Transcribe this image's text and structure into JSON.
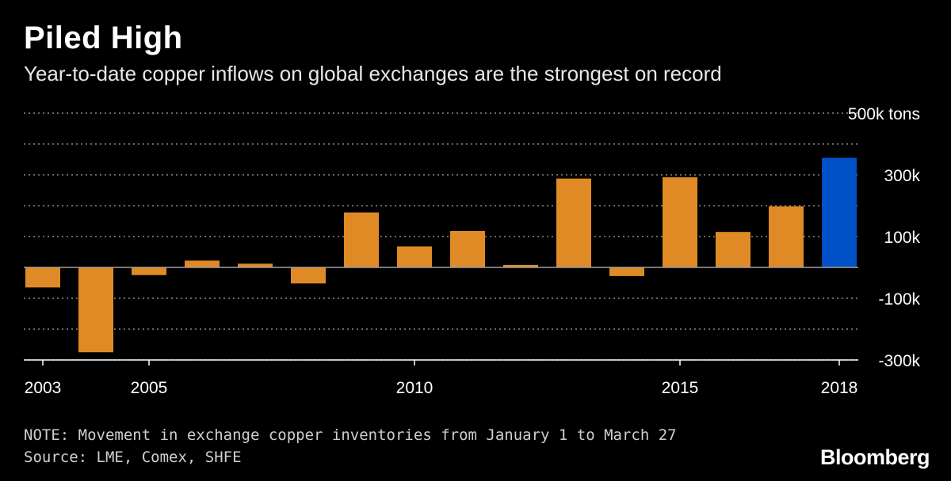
{
  "header": {
    "title": "Piled High",
    "subtitle": "Year-to-date copper inflows on global exchanges are the strongest on record"
  },
  "footer": {
    "note": "NOTE: Movement in exchange copper inventories from January 1 to March 27",
    "source": "Source: LME, Comex, SHFE",
    "brand": "Bloomberg"
  },
  "colors": {
    "background": "#000000",
    "bar": "#e08a25",
    "highlight": "#0050c8",
    "grid": "#8a8a8a",
    "text": "#ffffff"
  },
  "chart_data": {
    "type": "bar",
    "title": "Piled High",
    "subtitle": "Year-to-date copper inflows on global exchanges are the strongest on record",
    "ylabel": "",
    "xlabel": "",
    "unit": "tons",
    "x": [
      2003,
      2004,
      2005,
      2006,
      2007,
      2008,
      2009,
      2010,
      2011,
      2012,
      2013,
      2014,
      2015,
      2016,
      2017,
      2018
    ],
    "values": [
      -65000,
      -275000,
      -25000,
      22000,
      12000,
      -52000,
      178000,
      68000,
      118000,
      8000,
      288000,
      -28000,
      292000,
      115000,
      198000,
      355000
    ],
    "highlight_index": 15,
    "ylim": [
      -300000,
      500000
    ],
    "gridlines": [
      -300000,
      -200000,
      -100000,
      0,
      100000,
      200000,
      300000,
      400000,
      500000
    ],
    "y_tick_labels": [
      {
        "value": 500000,
        "label": "500k tons"
      },
      {
        "value": 300000,
        "label": "300k"
      },
      {
        "value": 100000,
        "label": "100k"
      },
      {
        "value": -100000,
        "label": "-100k"
      },
      {
        "value": -300000,
        "label": "-300k"
      }
    ],
    "x_tick_labels": [
      {
        "value": 2003,
        "label": "2003"
      },
      {
        "value": 2005,
        "label": "2005"
      },
      {
        "value": 2010,
        "label": "2010"
      },
      {
        "value": 2015,
        "label": "2015"
      },
      {
        "value": 2018,
        "label": "2018"
      }
    ],
    "grid": true,
    "y_axis_side": "right",
    "legend": "none"
  }
}
